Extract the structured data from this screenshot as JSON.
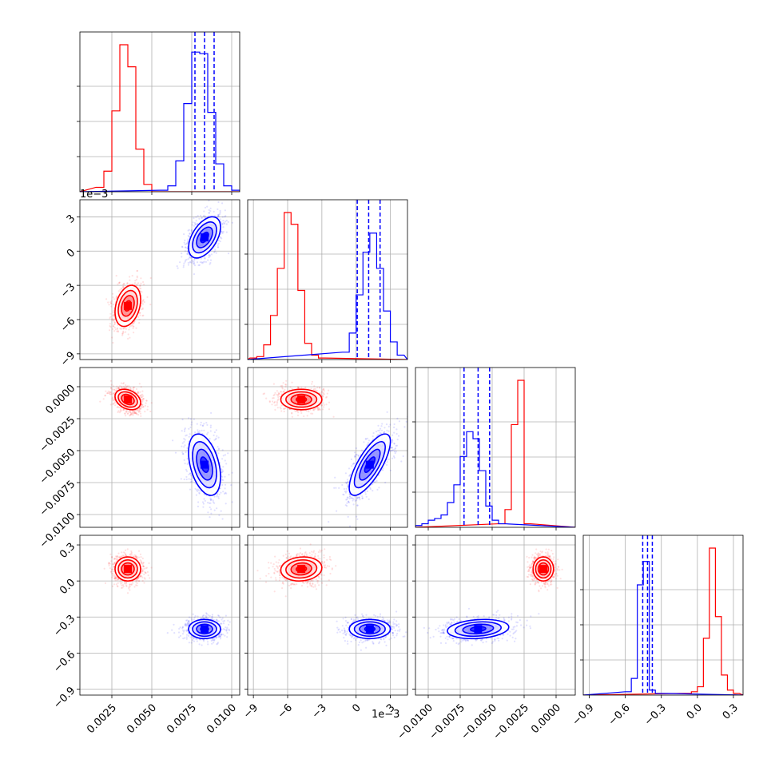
{
  "chart_data": {
    "type": "corner",
    "grid": true,
    "series": [
      {
        "name": "",
        "color": "#ff0000"
      },
      {
        "name": "",
        "color": "#0000ff"
      }
    ],
    "parameters": [
      {
        "id": "p0",
        "range": [
          0.0005,
          0.0105
        ],
        "ticks": [
          0.0025,
          0.005,
          0.0075,
          0.01
        ],
        "tick_labels": [
          "0.0025",
          "0.0050",
          "0.0075",
          "0.0100"
        ],
        "offset_label": ""
      },
      {
        "id": "p1",
        "range": [
          -0.0095,
          0.0045
        ],
        "ticks": [
          -0.009,
          -0.006,
          -0.003,
          0,
          0.003
        ],
        "tick_labels": [
          "−9",
          "−6",
          "−3",
          "0",
          "3"
        ],
        "offset_label": "1e−3"
      },
      {
        "id": "p2",
        "range": [
          -0.011,
          0.0015
        ],
        "ticks": [
          -0.01,
          -0.0075,
          -0.005,
          -0.0025,
          0
        ],
        "tick_labels": [
          "−0.0100",
          "−0.0075",
          "−0.0050",
          "−0.0025",
          "0.0000"
        ],
        "offset_label": ""
      },
      {
        "id": "p3",
        "range": [
          -0.95,
          0.38
        ],
        "ticks": [
          -0.9,
          -0.6,
          -0.3,
          0,
          0.3
        ],
        "tick_labels": [
          "−0.9",
          "−0.6",
          "−0.3",
          "0.0",
          "0.3"
        ],
        "offset_label": ""
      }
    ],
    "histograms": [
      {
        "param": 0,
        "bin_width": 0.0005,
        "red": {
          "start": 0.0015,
          "counts": [
            0.03,
            0.14,
            0.55,
            1.0,
            0.85,
            0.29,
            0.05,
            0.0
          ]
        },
        "blue": {
          "start": 0.0055,
          "counts": [
            0.01,
            0.04,
            0.21,
            0.6,
            0.95,
            0.94,
            0.54,
            0.19,
            0.04,
            0.01
          ]
        },
        "blue_quantiles": [
          0.0077,
          0.0083,
          0.0089
        ]
      },
      {
        "param": 1,
        "bin_width": 0.0006,
        "red": {
          "start": -0.0093,
          "counts": [
            0.01,
            0.02,
            0.1,
            0.3,
            0.62,
            1.0,
            0.92,
            0.47,
            0.11,
            0.03,
            0.01
          ]
        },
        "blue": {
          "start": -0.0012,
          "counts": [
            0.05,
            0.18,
            0.44,
            0.73,
            0.86,
            0.62,
            0.33,
            0.12,
            0.03
          ]
        },
        "blue_quantiles": [
          0.0001,
          0.0011,
          0.0021
        ]
      },
      {
        "param": 2,
        "bin_width": 0.0005,
        "red": {
          "start": -0.0045,
          "counts": [
            0.02,
            0.1,
            0.58,
            0.83,
            0.02
          ]
        },
        "blue": {
          "start": -0.011,
          "counts": [
            0.01,
            0.02,
            0.04,
            0.05,
            0.07,
            0.14,
            0.24,
            0.4,
            0.54,
            0.5,
            0.32,
            0.12,
            0.04,
            0.02
          ]
        },
        "blue_quantiles": [
          -0.0072,
          -0.0061,
          -0.0052
        ]
      },
      {
        "param": 3,
        "bin_width": 0.05,
        "red": {
          "start": -0.15,
          "counts": [
            0.01,
            0.01,
            0.02,
            0.05,
            0.34,
            0.88,
            0.47,
            0.12,
            0.03,
            0.01
          ]
        },
        "blue": {
          "start": -0.6,
          "counts": [
            0.02,
            0.1,
            0.66,
            0.8,
            0.03,
            0.01,
            0.01
          ]
        },
        "blue_quantiles": [
          -0.455,
          -0.415,
          -0.375
        ]
      }
    ],
    "clusters": [
      {
        "name": "",
        "color": "red",
        "center": [
          0.0035,
          -0.0048,
          -0.001,
          0.1
        ],
        "std": [
          0.0004,
          0.0009,
          0.0004,
          0.05
        ]
      },
      {
        "name": "",
        "color": "blue",
        "center": [
          0.0083,
          0.0012,
          -0.0061,
          -0.4
        ],
        "std": [
          0.0005,
          0.0009,
          0.0012,
          0.04
        ]
      }
    ]
  }
}
